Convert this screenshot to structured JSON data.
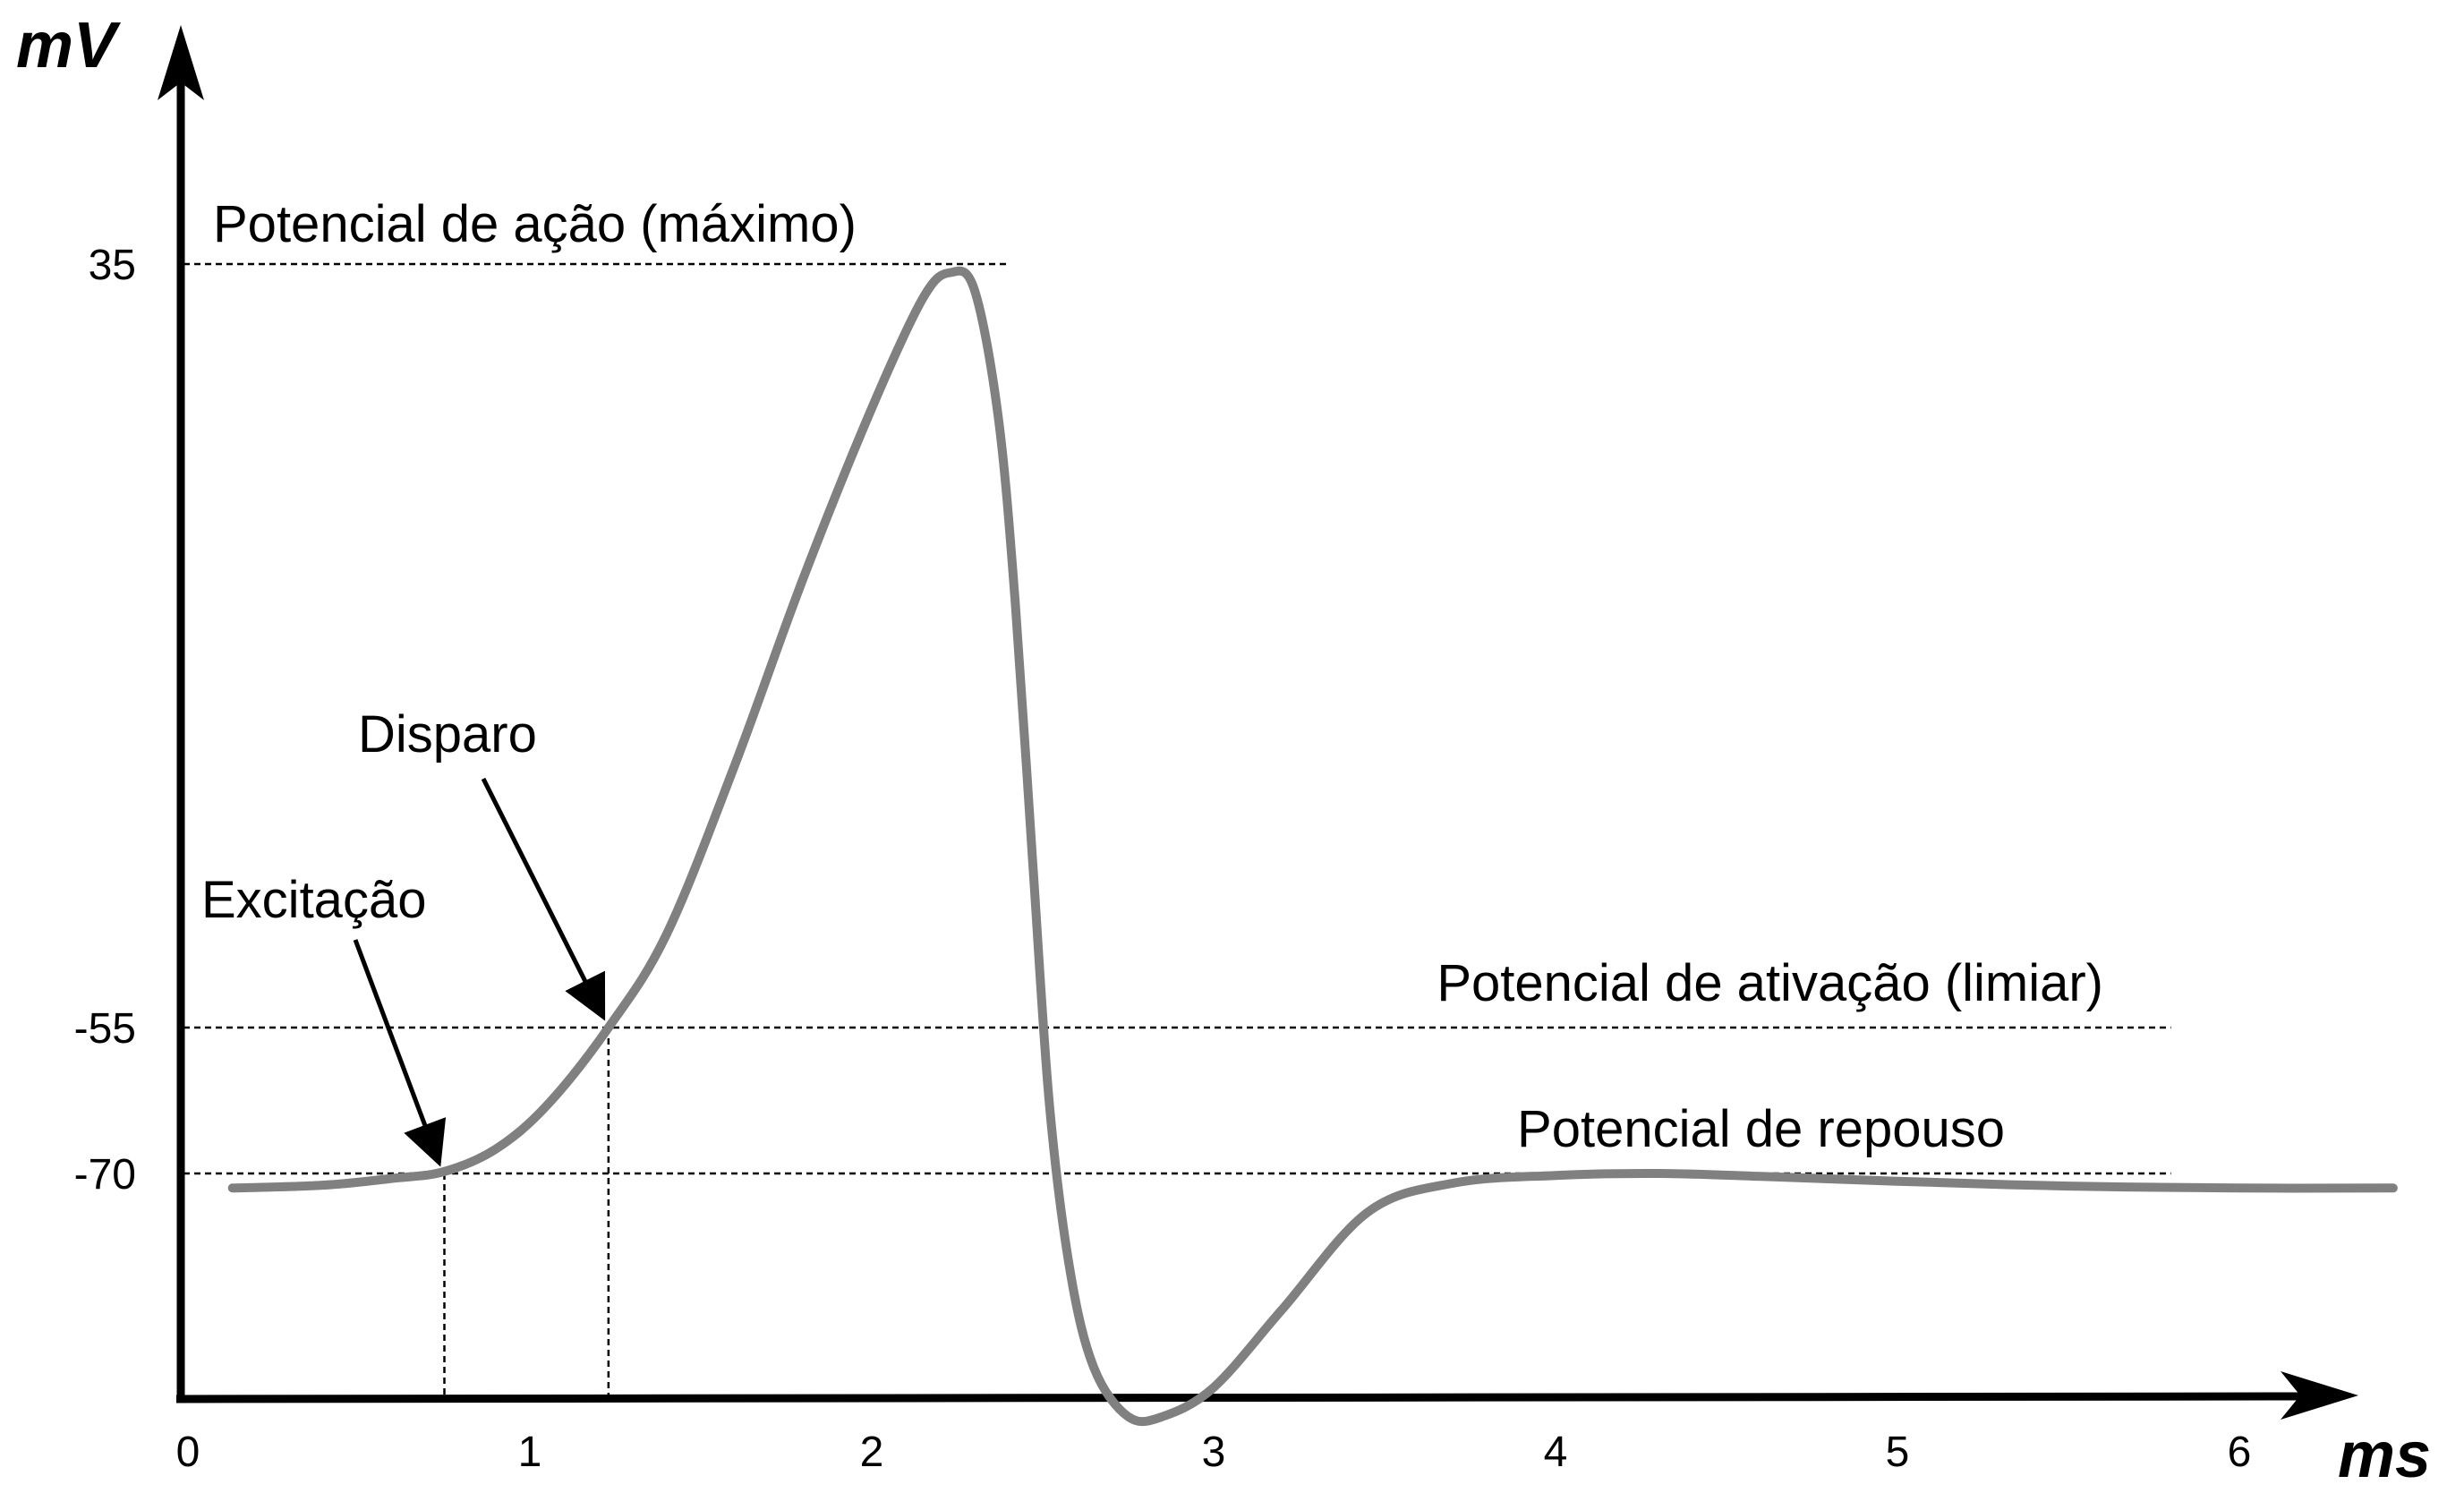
{
  "chart_data": {
    "type": "line",
    "title": "",
    "xlabel": "ms",
    "ylabel": "mV",
    "xlim": [
      0,
      6.5
    ],
    "x_ticks": [
      "0",
      "1",
      "2",
      "3",
      "4",
      "5",
      "6"
    ],
    "y_ticks": [
      {
        "label": "35",
        "value": 35
      },
      {
        "label": "-55",
        "value": -55
      },
      {
        "label": "-70",
        "value": -70
      }
    ],
    "series": [
      {
        "name": "",
        "color": "#808080",
        "x": [
          0.13,
          0.4,
          0.6,
          0.75,
          0.9,
          1.05,
          1.23,
          1.4,
          1.6,
          1.8,
          2.0,
          2.15,
          2.23,
          2.3,
          2.37,
          2.42,
          2.47,
          2.52,
          2.58,
          2.65,
          2.75,
          2.85,
          3.0,
          3.2,
          3.45,
          3.7,
          4.0,
          4.3,
          4.6,
          5.0,
          5.5,
          6.0,
          6.45
        ],
        "y": [
          -71.5,
          -71.2,
          -70.5,
          -69.8,
          -67.5,
          -63,
          -55,
          -44,
          -24,
          -2,
          18,
          31,
          34,
          32,
          17,
          -5,
          -35,
          -63,
          -80,
          -90,
          -95,
          -95,
          -92,
          -84,
          -74,
          -71,
          -70.2,
          -70,
          -70.3,
          -70.8,
          -71.3,
          -71.5,
          -71.5
        ]
      }
    ],
    "reference_lines": [
      {
        "label": "Potencial de ação (máximo)",
        "value": 35,
        "x_end": 2.4
      },
      {
        "label": "Potencial de ativação (limiar)",
        "value": -55,
        "x_end": 5.8
      },
      {
        "label": "Potencial de repouso",
        "value": -70,
        "x_end": 5.8
      }
    ],
    "annotations": [
      {
        "label": "Disparo",
        "x": 1.23,
        "y": -55
      },
      {
        "label": "Excitação",
        "x": 0.75,
        "y": -70
      }
    ]
  }
}
